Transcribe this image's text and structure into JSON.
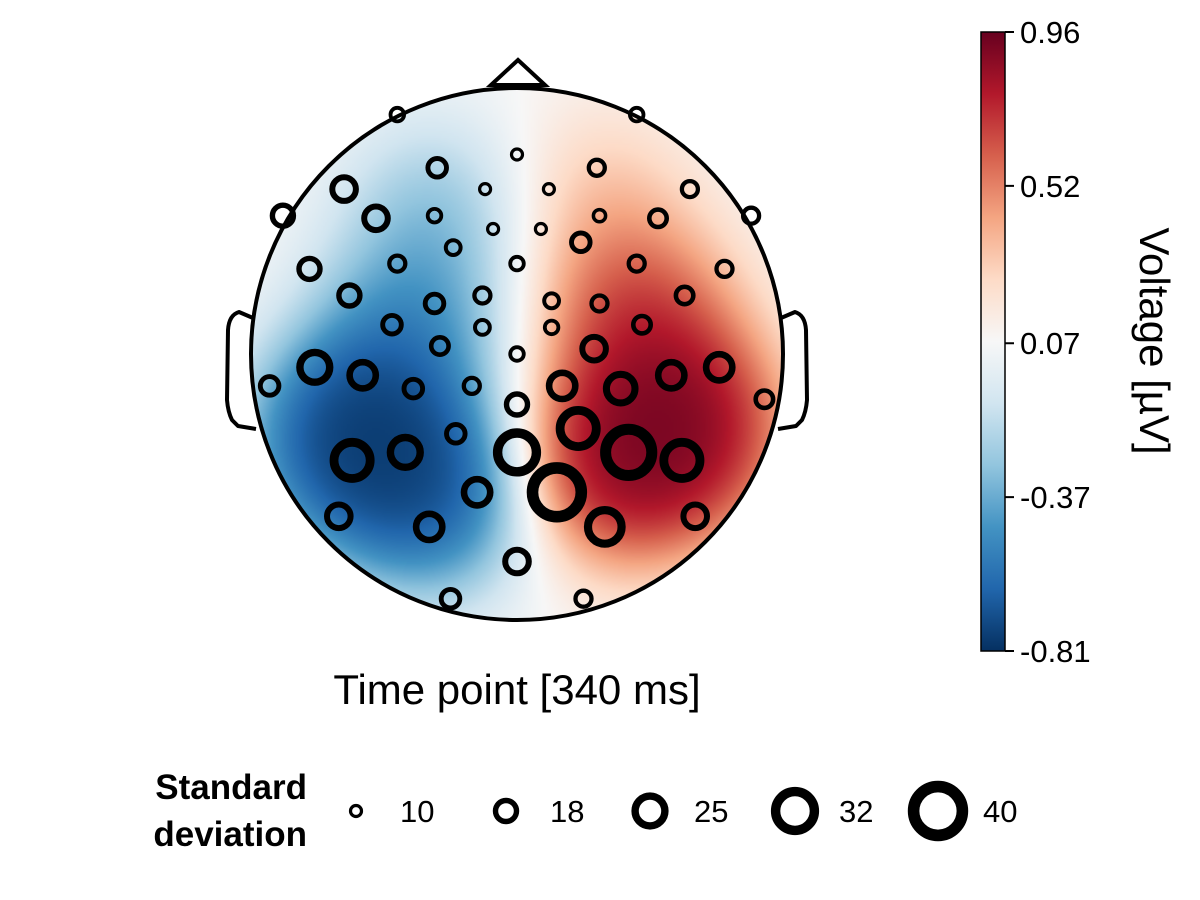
{
  "chart_data": {
    "type": "heatmap",
    "subtype": "eeg-topoplot",
    "xlabel": "Time point [340 ms]",
    "colorbar": {
      "label": "Voltage [µV]",
      "ticks": [
        "0.96",
        "0.52",
        "0.07",
        "-0.37",
        "-0.81"
      ],
      "range": [
        -0.81,
        0.96
      ],
      "colormap": [
        "#053061",
        "#2166ac",
        "#4393c3",
        "#92c5de",
        "#d1e5f0",
        "#f7f7f7",
        "#fddbc7",
        "#f4a582",
        "#d6604d",
        "#b2182b",
        "#67001f"
      ]
    },
    "field_sources": [
      {
        "x": -0.6,
        "y": -0.32,
        "weight": -1.2
      },
      {
        "x": -0.3,
        "y": -0.55,
        "weight": -0.7
      },
      {
        "x": -0.4,
        "y": 0.1,
        "weight": -0.45
      },
      {
        "x": -0.3,
        "y": 0.55,
        "weight": -0.3
      },
      {
        "x": 0.6,
        "y": -0.28,
        "weight": 1.05
      },
      {
        "x": 0.35,
        "y": -0.45,
        "weight": 0.6
      },
      {
        "x": 0.45,
        "y": 0.15,
        "weight": 0.55
      },
      {
        "x": 0.3,
        "y": 0.6,
        "weight": 0.2
      }
    ],
    "legend": {
      "title_line1": "Standard",
      "title_line2": "deviation",
      "items": [
        {
          "label": "10",
          "sd": 10
        },
        {
          "label": "18",
          "sd": 18
        },
        {
          "label": "25",
          "sd": 25
        },
        {
          "label": "32",
          "sd": 32
        },
        {
          "label": "40",
          "sd": 40
        }
      ]
    },
    "electrodes": [
      {
        "x": -0.45,
        "y": 0.9,
        "sd": 12
      },
      {
        "x": 0.45,
        "y": 0.9,
        "sd": 12
      },
      {
        "x": 0.0,
        "y": 0.75,
        "sd": 10
      },
      {
        "x": -0.3,
        "y": 0.7,
        "sd": 16
      },
      {
        "x": 0.3,
        "y": 0.7,
        "sd": 14
      },
      {
        "x": -0.65,
        "y": 0.62,
        "sd": 20
      },
      {
        "x": -0.12,
        "y": 0.62,
        "sd": 10
      },
      {
        "x": 0.12,
        "y": 0.62,
        "sd": 10
      },
      {
        "x": 0.65,
        "y": 0.62,
        "sd": 14
      },
      {
        "x": -0.88,
        "y": 0.52,
        "sd": 18
      },
      {
        "x": -0.53,
        "y": 0.51,
        "sd": 20
      },
      {
        "x": -0.31,
        "y": 0.52,
        "sd": 12
      },
      {
        "x": 0.31,
        "y": 0.52,
        "sd": 11
      },
      {
        "x": 0.53,
        "y": 0.51,
        "sd": 15
      },
      {
        "x": 0.88,
        "y": 0.52,
        "sd": 14
      },
      {
        "x": -0.09,
        "y": 0.47,
        "sd": 10
      },
      {
        "x": 0.09,
        "y": 0.47,
        "sd": 10
      },
      {
        "x": -0.24,
        "y": 0.4,
        "sd": 13
      },
      {
        "x": 0.24,
        "y": 0.42,
        "sd": 16
      },
      {
        "x": -0.45,
        "y": 0.34,
        "sd": 14
      },
      {
        "x": 0.45,
        "y": 0.34,
        "sd": 14
      },
      {
        "x": -0.78,
        "y": 0.32,
        "sd": 18
      },
      {
        "x": 0.78,
        "y": 0.32,
        "sd": 14
      },
      {
        "x": 0.0,
        "y": 0.34,
        "sd": 12
      },
      {
        "x": -0.63,
        "y": 0.22,
        "sd": 18
      },
      {
        "x": -0.31,
        "y": 0.19,
        "sd": 16
      },
      {
        "x": -0.13,
        "y": 0.22,
        "sd": 14
      },
      {
        "x": 0.13,
        "y": 0.2,
        "sd": 13
      },
      {
        "x": 0.31,
        "y": 0.19,
        "sd": 14
      },
      {
        "x": 0.63,
        "y": 0.22,
        "sd": 15
      },
      {
        "x": -0.47,
        "y": 0.11,
        "sd": 16
      },
      {
        "x": -0.13,
        "y": 0.1,
        "sd": 13
      },
      {
        "x": 0.13,
        "y": 0.1,
        "sd": 12
      },
      {
        "x": 0.47,
        "y": 0.11,
        "sd": 15
      },
      {
        "x": -0.29,
        "y": 0.03,
        "sd": 15
      },
      {
        "x": 0.29,
        "y": 0.02,
        "sd": 20
      },
      {
        "x": 0.0,
        "y": 0.0,
        "sd": 12
      },
      {
        "x": -0.76,
        "y": -0.05,
        "sd": 25
      },
      {
        "x": -0.58,
        "y": -0.08,
        "sd": 22
      },
      {
        "x": -0.93,
        "y": -0.12,
        "sd": 16
      },
      {
        "x": -0.39,
        "y": -0.13,
        "sd": 16
      },
      {
        "x": -0.17,
        "y": -0.12,
        "sd": 14
      },
      {
        "x": 0.17,
        "y": -0.12,
        "sd": 22
      },
      {
        "x": 0.39,
        "y": -0.13,
        "sd": 24
      },
      {
        "x": 0.58,
        "y": -0.08,
        "sd": 22
      },
      {
        "x": 0.76,
        "y": -0.05,
        "sd": 22
      },
      {
        "x": 0.93,
        "y": -0.17,
        "sd": 15
      },
      {
        "x": 0.0,
        "y": -0.19,
        "sd": 18
      },
      {
        "x": -0.23,
        "y": -0.3,
        "sd": 16
      },
      {
        "x": 0.23,
        "y": -0.28,
        "sd": 30
      },
      {
        "x": -0.62,
        "y": -0.4,
        "sd": 30
      },
      {
        "x": -0.42,
        "y": -0.37,
        "sd": 25
      },
      {
        "x": 0.0,
        "y": -0.37,
        "sd": 32
      },
      {
        "x": 0.42,
        "y": -0.37,
        "sd": 38
      },
      {
        "x": 0.62,
        "y": -0.4,
        "sd": 30
      },
      {
        "x": -0.15,
        "y": -0.52,
        "sd": 22
      },
      {
        "x": 0.15,
        "y": -0.52,
        "sd": 40
      },
      {
        "x": -0.67,
        "y": -0.61,
        "sd": 20
      },
      {
        "x": -0.33,
        "y": -0.65,
        "sd": 22
      },
      {
        "x": 0.33,
        "y": -0.65,
        "sd": 28
      },
      {
        "x": 0.67,
        "y": -0.61,
        "sd": 20
      },
      {
        "x": 0.0,
        "y": -0.78,
        "sd": 20
      },
      {
        "x": -0.25,
        "y": -0.92,
        "sd": 16
      },
      {
        "x": 0.25,
        "y": -0.92,
        "sd": 14
      }
    ]
  }
}
